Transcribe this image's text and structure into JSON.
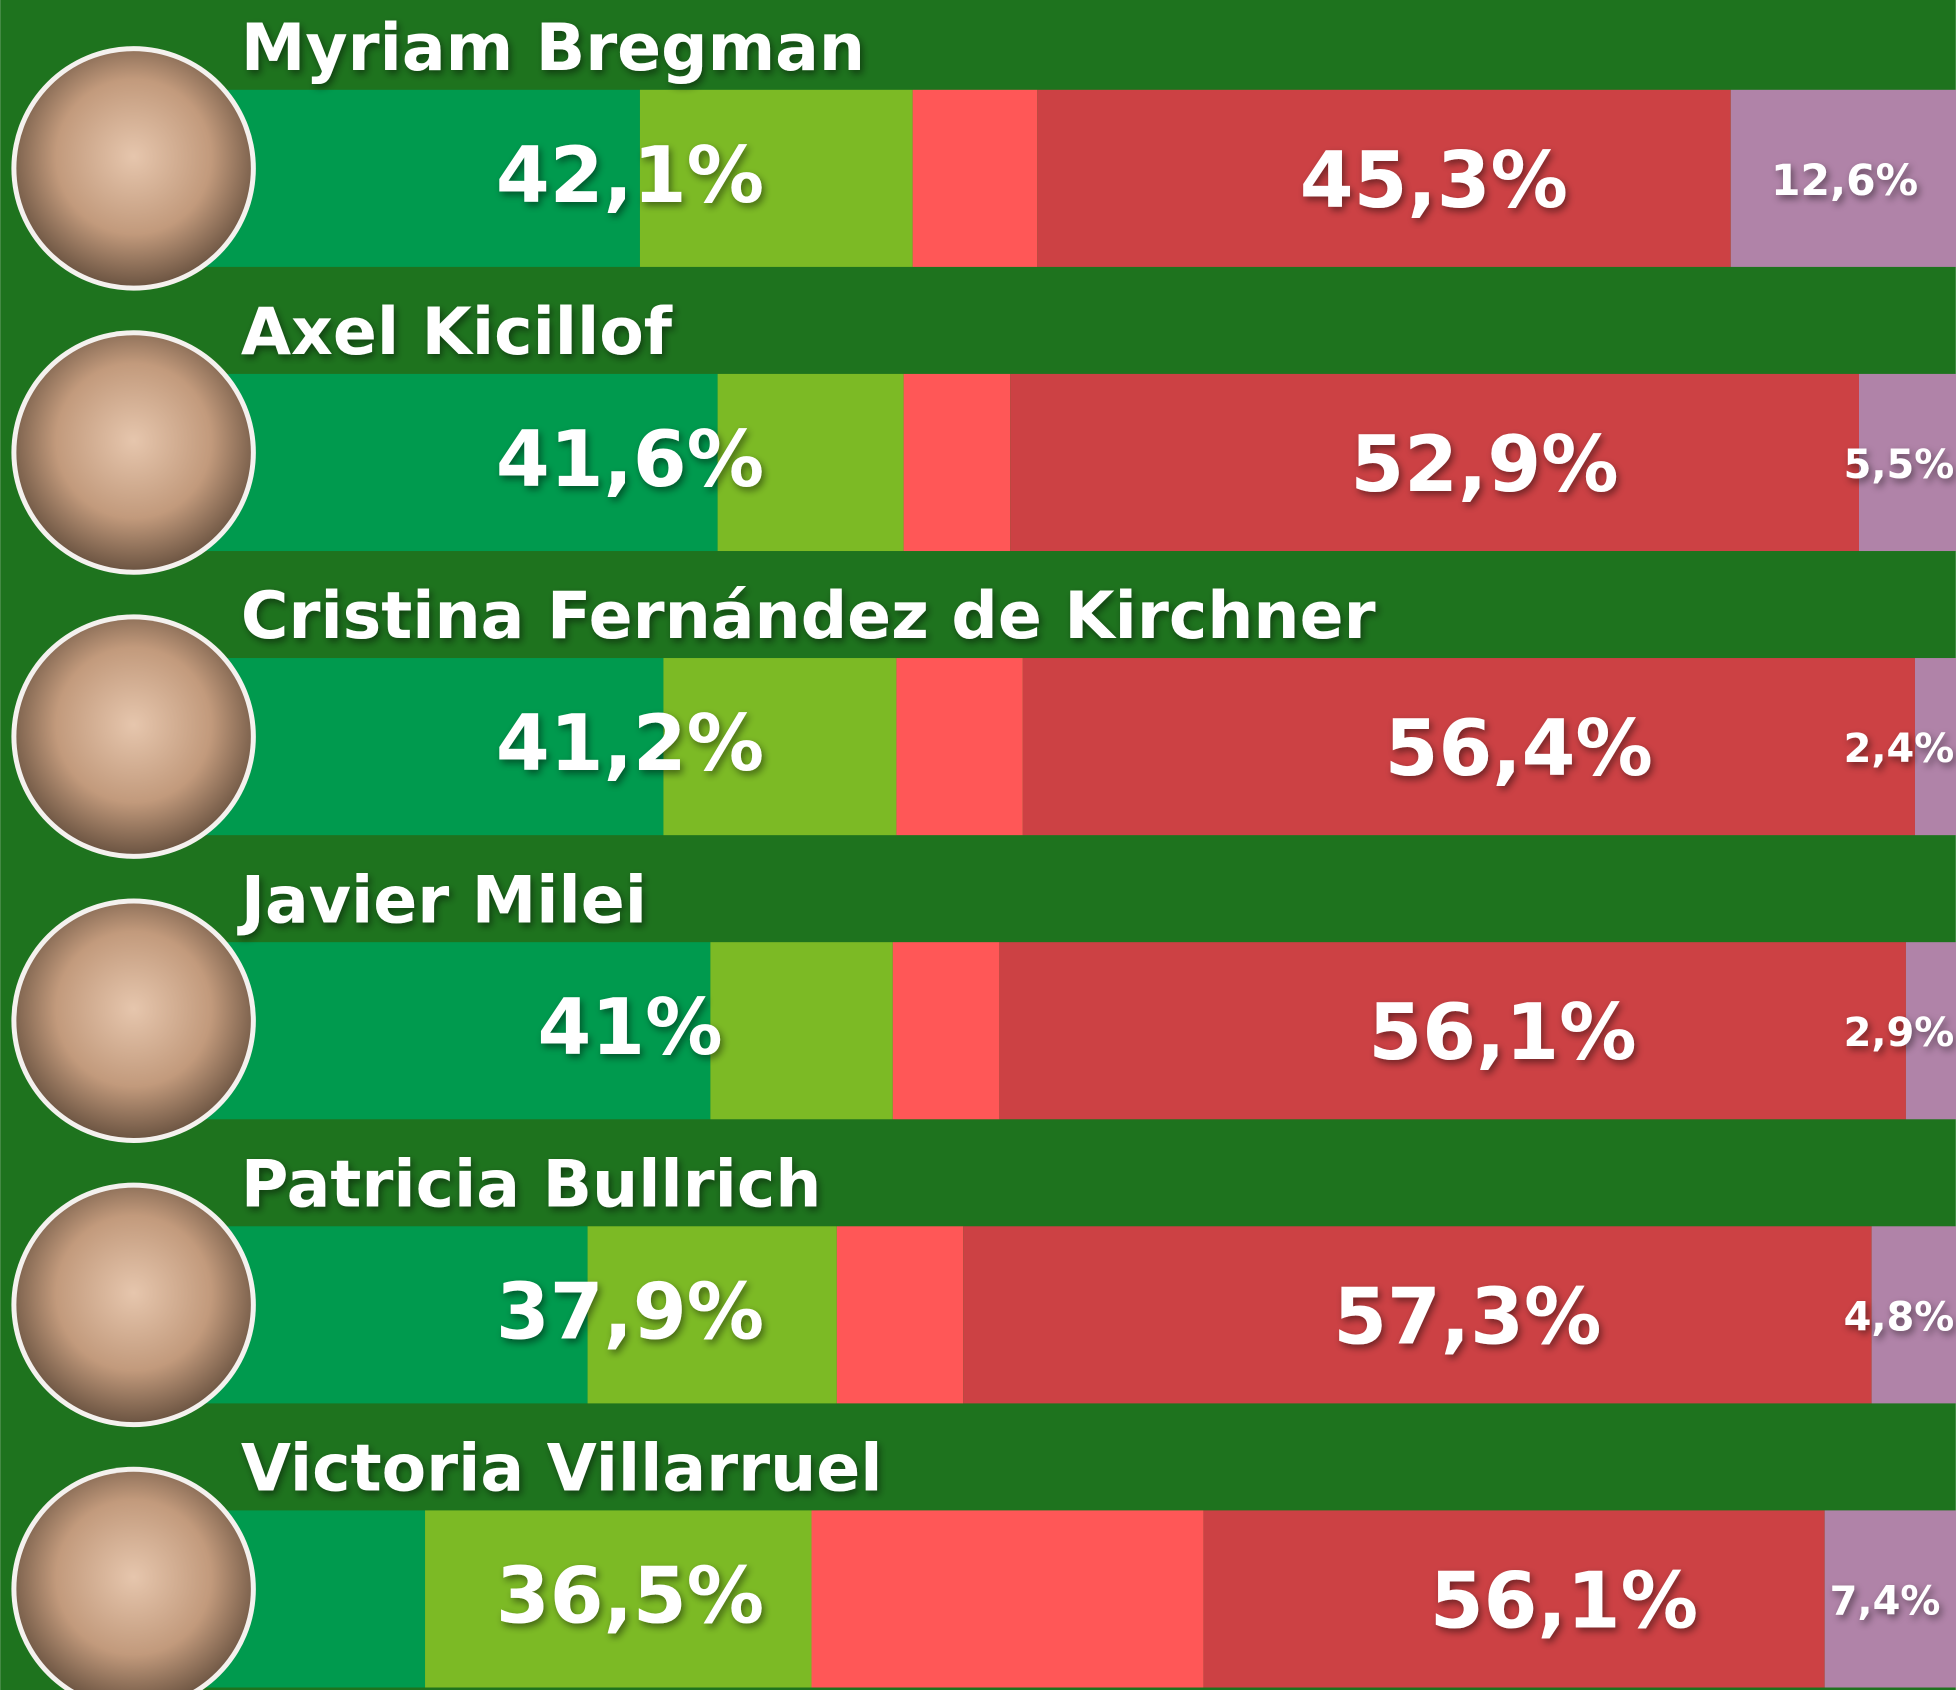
{
  "chart_data": {
    "type": "bar",
    "xlim": [
      0,
      100
    ],
    "colors": {
      "positive": [
        "#009a4e",
        "#7cba25"
      ],
      "negative": [
        "#ff5757",
        "#cc4144"
      ],
      "unknown": "#b083a8",
      "background": "#1e731e"
    },
    "rows": [
      {
        "name": "Myriam Bregman",
        "positive": {
          "value": 42.1,
          "label": "42,1%",
          "parts": [
            27.0,
            15.1
          ]
        },
        "negative": {
          "value": 45.3,
          "label": "45,3%",
          "parts": [
            6.9,
            38.4
          ]
        },
        "unknown": {
          "value": 12.6,
          "label": "12,6%"
        }
      },
      {
        "name": "Axel Kicillof",
        "positive": {
          "value": 41.6,
          "label": "41,6%",
          "parts": [
            31.3,
            10.3
          ]
        },
        "negative": {
          "value": 52.9,
          "label": "52,9%",
          "parts": [
            5.9,
            47.0
          ]
        },
        "unknown": {
          "value": 5.5,
          "label": "5,5%"
        }
      },
      {
        "name": "Cristina Fernández de Kirchner",
        "positive": {
          "value": 41.2,
          "label": "41,2%",
          "parts": [
            28.3,
            12.9
          ]
        },
        "negative": {
          "value": 56.4,
          "label": "56,4%",
          "parts": [
            7.0,
            49.4
          ]
        },
        "unknown": {
          "value": 2.4,
          "label": "2,4%"
        }
      },
      {
        "name": "Javier Milei",
        "positive": {
          "value": 41,
          "label": "41%",
          "parts": [
            30.9,
            10.1
          ]
        },
        "negative": {
          "value": 56.1,
          "label": "56,1%",
          "parts": [
            5.9,
            50.2
          ]
        },
        "unknown": {
          "value": 2.9,
          "label": "2,9%"
        }
      },
      {
        "name": "Patricia Bullrich",
        "positive": {
          "value": 37.9,
          "label": "37,9%",
          "parts": [
            24.1,
            13.8
          ]
        },
        "negative": {
          "value": 57.3,
          "label": "57,3%",
          "parts": [
            7.0,
            50.3
          ]
        },
        "unknown": {
          "value": 4.8,
          "label": "4,8%"
        }
      },
      {
        "name": "Victoria Villarruel",
        "positive": {
          "value": 36.5,
          "label": "36,5%",
          "parts": [
            15.1,
            21.4
          ]
        },
        "negative": {
          "value": 56.1,
          "label": "56,1%",
          "parts": [
            21.7,
            34.4
          ]
        },
        "unknown": {
          "value": 7.4,
          "label": "7,4%"
        }
      }
    ]
  }
}
